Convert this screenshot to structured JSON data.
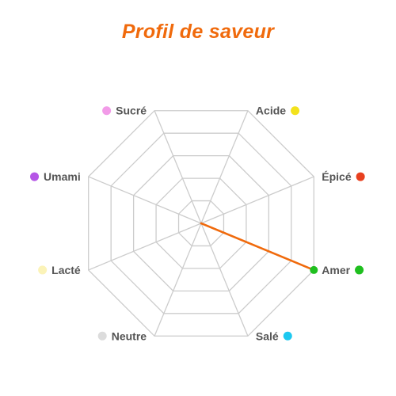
{
  "chart_data": {
    "type": "radar",
    "title": "Profil de saveur",
    "axes": [
      {
        "label": "Acide",
        "color": "#f3e21c"
      },
      {
        "label": "Épicé",
        "color": "#e8401f"
      },
      {
        "label": "Amer",
        "color": "#1fbf1f"
      },
      {
        "label": "Salé",
        "color": "#1cc8f0"
      },
      {
        "label": "Neutre",
        "color": "#dcdcdc"
      },
      {
        "label": "Lacté",
        "color": "#fbf3b8"
      },
      {
        "label": "Umami",
        "color": "#b556e6"
      },
      {
        "label": "Sucré",
        "color": "#f29be8"
      }
    ],
    "grid_levels": 5,
    "range": [
      0,
      1
    ],
    "series": [
      {
        "color": "#f06a0c",
        "values": [
          0,
          0,
          1,
          0,
          0,
          0,
          0,
          0
        ]
      }
    ],
    "grid_color": "#cccccc"
  }
}
